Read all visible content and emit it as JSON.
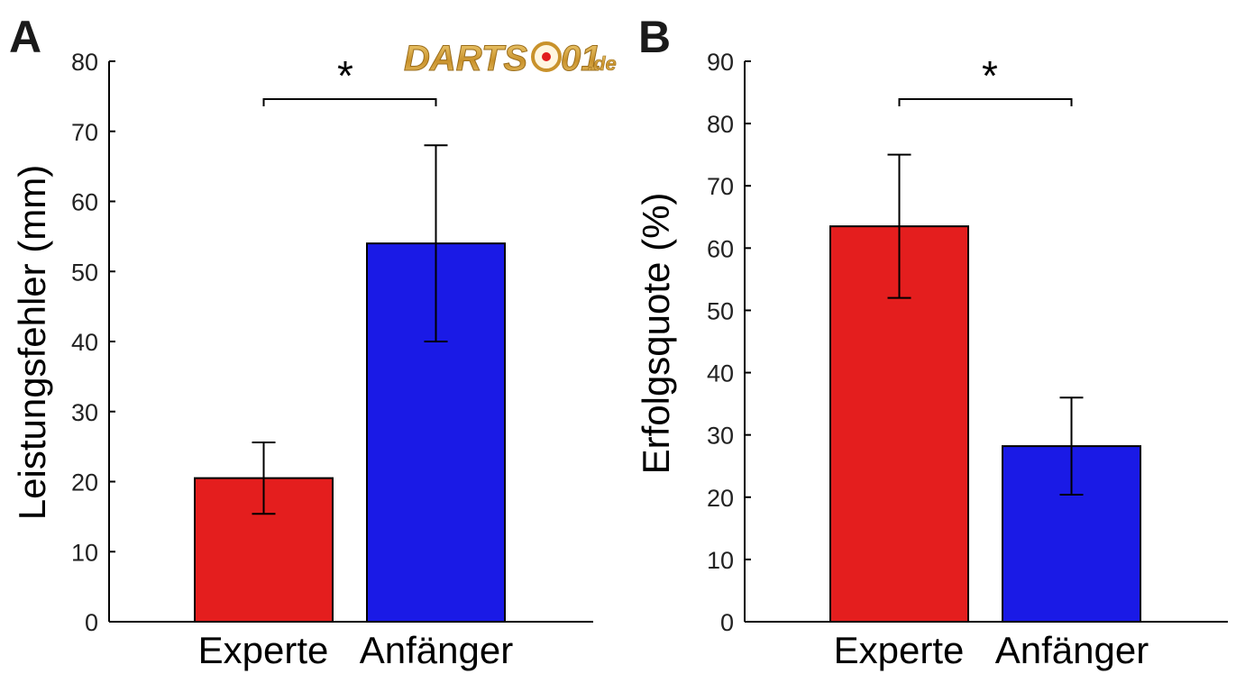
{
  "chart_data": [
    {
      "panel": "A",
      "type": "bar",
      "categories": [
        "Experte",
        "Anfänger"
      ],
      "values": [
        20.5,
        54.0
      ],
      "error": [
        5.1,
        14.0
      ],
      "colors": [
        "#e41e1e",
        "#1a1ae6"
      ],
      "ylabel": "Leistungsfehler (mm)",
      "xlabel": "",
      "ylim": [
        0,
        80
      ],
      "yticks": [
        0,
        10,
        20,
        30,
        40,
        50,
        60,
        70,
        80
      ],
      "significance": "*",
      "grid": false
    },
    {
      "panel": "B",
      "type": "bar",
      "categories": [
        "Experte",
        "Anfänger"
      ],
      "values": [
        63.5,
        28.2
      ],
      "error": [
        11.5,
        7.8
      ],
      "colors": [
        "#e41e1e",
        "#1a1ae6"
      ],
      "ylabel": "Erfolgsquote (%)",
      "xlabel": "",
      "ylim": [
        0,
        90
      ],
      "yticks": [
        0,
        10,
        20,
        30,
        40,
        50,
        60,
        70,
        80,
        90
      ],
      "significance": "*",
      "grid": false
    }
  ],
  "watermark": {
    "brand": "DARTS",
    "number": "01",
    "suffix": ".de",
    "colors": {
      "gold": "#d9a93a",
      "dot": "#e11d1d"
    }
  }
}
